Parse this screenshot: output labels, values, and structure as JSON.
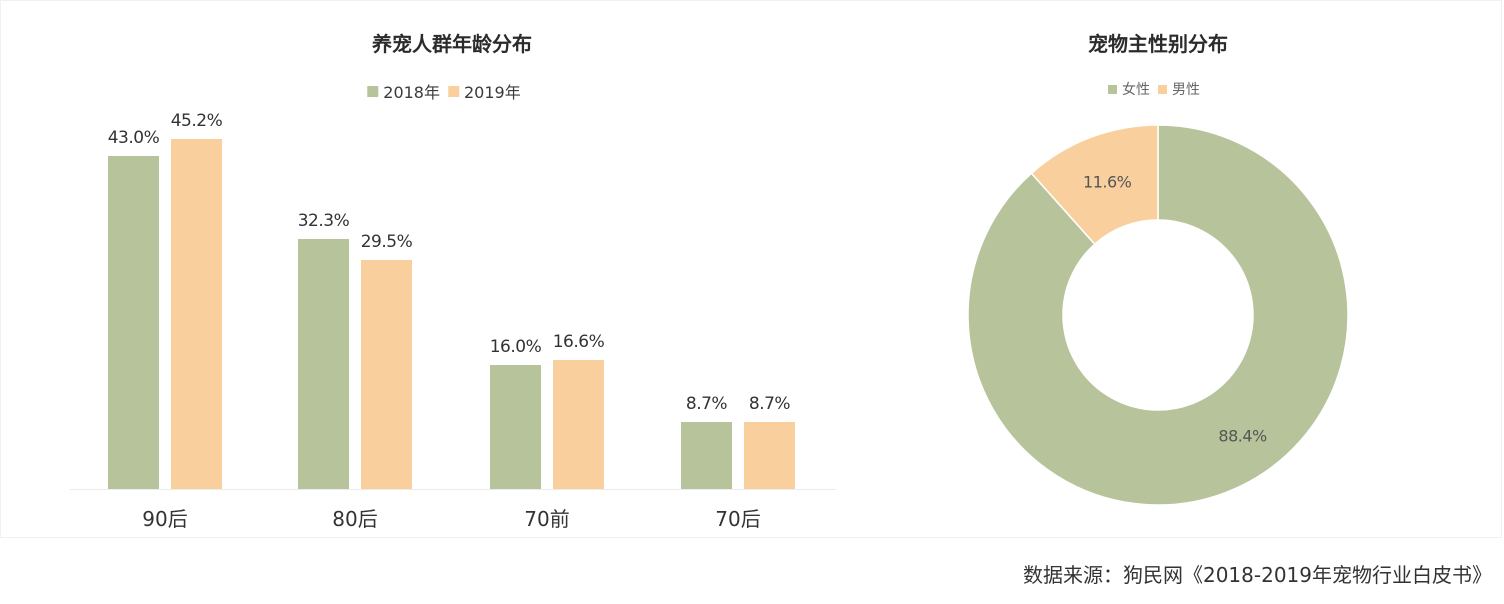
{
  "colors": {
    "series_2018": "#b7c39a",
    "series_2019": "#f9d09d",
    "female": "#b7c39a",
    "male": "#f9d09d"
  },
  "left_chart": {
    "title": "养宠人群年龄分布",
    "legend": [
      {
        "label": "2018年",
        "color": "#b7c39a"
      },
      {
        "label": "2019年",
        "color": "#f9d09d"
      }
    ]
  },
  "right_chart": {
    "title": "宠物主性别分布",
    "legend": [
      {
        "label": "女性",
        "color": "#b7c39a"
      },
      {
        "label": "男性",
        "color": "#f9d09d"
      }
    ]
  },
  "source": "数据来源：狗民网《2018-2019年宠物行业白皮书》",
  "chart_data": [
    {
      "type": "bar",
      "title": "养宠人群年龄分布",
      "categories": [
        "90后",
        "80后",
        "70前",
        "70后"
      ],
      "series": [
        {
          "name": "2018年",
          "values": [
            43.0,
            32.3,
            16.0,
            8.7
          ],
          "labels": [
            "43.0%",
            "32.3%",
            "16.0%",
            "8.7%"
          ],
          "color": "#b7c39a"
        },
        {
          "name": "2019年",
          "values": [
            45.2,
            29.5,
            16.6,
            8.7
          ],
          "labels": [
            "45.2%",
            "29.5%",
            "16.6%",
            "8.7%"
          ],
          "color": "#f9d09d"
        }
      ],
      "xlabel": "",
      "ylabel": "",
      "ylim": [
        0,
        50
      ],
      "grid": false,
      "legend_position": "top"
    },
    {
      "type": "pie",
      "subtype": "donut",
      "title": "宠物主性别分布",
      "categories": [
        "女性",
        "男性"
      ],
      "values": [
        88.4,
        11.6
      ],
      "labels": [
        "88.4%",
        "11.6%"
      ],
      "colors": [
        "#b7c39a",
        "#f9d09d"
      ],
      "legend_position": "top"
    }
  ]
}
